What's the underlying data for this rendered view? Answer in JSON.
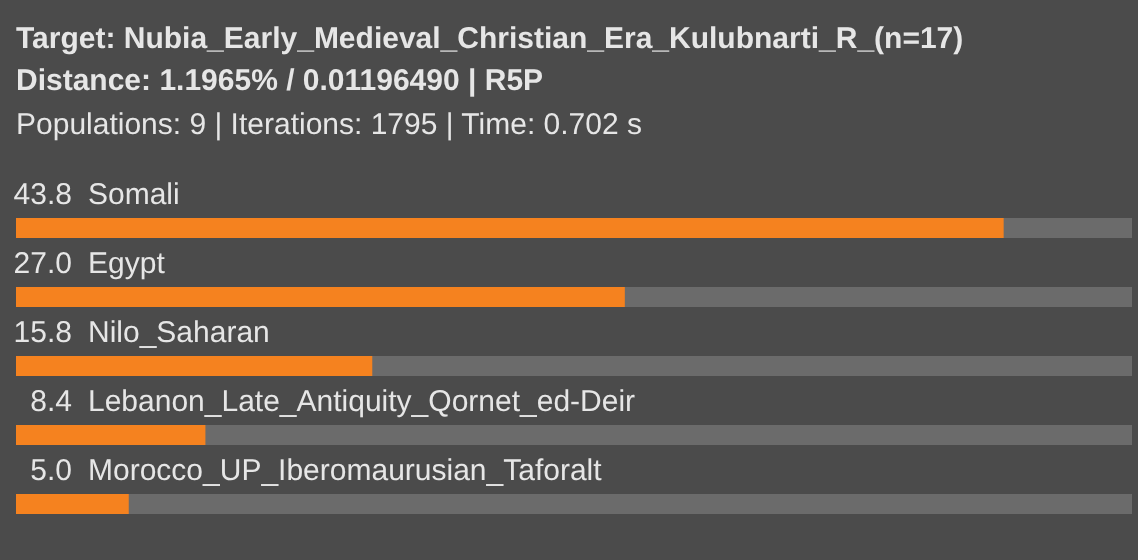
{
  "chart_data": {
    "type": "bar",
    "orientation": "horizontal",
    "title": "Target: Nubia_Early_Medieval_Christian_Era_Kulubnarti_R_(n=17)",
    "subtitle": "Distance: 1.1965% / 0.01196490 | R5P",
    "annotations": [
      "Populations: 9 | Iterations: 1795 | Time: 0.702 s"
    ],
    "value_labels": [
      "43.8",
      "27.0",
      "15.8",
      "8.4",
      "5.0"
    ],
    "categories": [
      "Somali",
      "Egypt",
      "Nilo_Saharan",
      "Lebanon_Late_Antiquity_Qornet_ed-Deir",
      "Morocco_UP_Iberomaurusian_Taforalt"
    ],
    "values": [
      43.8,
      27.0,
      15.8,
      8.4,
      5.0
    ],
    "color": "#f5821f"
  }
}
